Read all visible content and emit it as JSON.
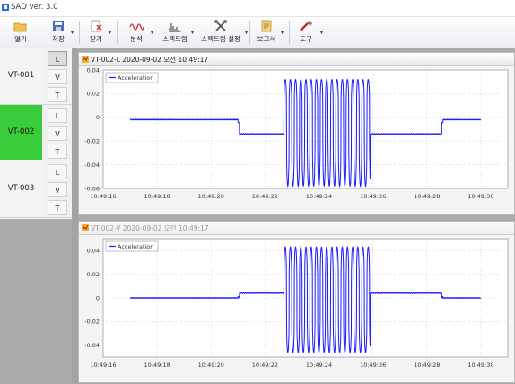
{
  "app": {
    "title": "SAD ver. 3.0"
  },
  "toolbar": {
    "items": [
      {
        "label": "열기",
        "icon": "open-folder-icon",
        "dropdown": false
      },
      {
        "label": "저장",
        "icon": "save-icon",
        "dropdown": true
      },
      {
        "label": "닫기",
        "icon": "close-file-icon",
        "dropdown": true
      },
      {
        "label": "분석",
        "icon": "analysis-wave-icon",
        "dropdown": true
      },
      {
        "label": "스펙트럼",
        "icon": "spectrum-icon",
        "dropdown": true
      },
      {
        "label": "스펙트럼 설정",
        "icon": "spectrum-settings-icon",
        "dropdown": true
      },
      {
        "label": "보고서",
        "icon": "report-icon",
        "dropdown": true
      },
      {
        "label": "도구",
        "icon": "tools-icon",
        "dropdown": true
      }
    ]
  },
  "sidebar": {
    "groups": [
      {
        "name": "VT-001",
        "active": false,
        "axes": [
          "L",
          "V",
          "T"
        ],
        "selected_axis": "L"
      },
      {
        "name": "VT-002",
        "active": true,
        "axes": [
          "L",
          "V",
          "T"
        ],
        "selected_axis": ""
      },
      {
        "name": "VT-003",
        "active": false,
        "axes": [
          "L",
          "V",
          "T"
        ],
        "selected_axis": ""
      }
    ]
  },
  "colors": {
    "active_group": "#3acd3a",
    "series": "#1a1aff",
    "window_bg": "#f4f4f4"
  },
  "windows": [
    {
      "title": "VT-002-L 2020-09-02 오전 10:49:17",
      "active": true
    },
    {
      "title": "VT-002-V 2020-09-02 오전 10:49:17",
      "active": false
    }
  ],
  "chart_data": [
    {
      "type": "line",
      "series": [
        {
          "name": "Acceleration"
        }
      ],
      "legend": "top-left",
      "grid": true,
      "ylim": [
        -0.06,
        0.04
      ],
      "yticks": [
        "0.04",
        "0.02",
        "0",
        "-0.02",
        "-0.04",
        "-0.06"
      ],
      "xlim": [
        "10:49:16",
        "10:49:31"
      ],
      "xticks": [
        "10:49:16",
        "10:49:18",
        "10:49:20",
        "10:49:22",
        "10:49:24",
        "10:49:26",
        "10:49:28",
        "10:49:30"
      ],
      "signal": {
        "start": "10:49:17",
        "end": "10:49:30",
        "baseline": -0.002,
        "step_down_from": "10:49:21",
        "step_down_to": "10:49:28.6",
        "step_level": -0.014,
        "burst_start": "10:49:22.7",
        "burst_end": "10:49:25.9",
        "burst_max": 0.032,
        "burst_min": -0.058
      }
    },
    {
      "type": "line",
      "series": [
        {
          "name": "Acceleration"
        }
      ],
      "legend": "top-left",
      "grid": true,
      "ylim": [
        -0.05,
        0.05
      ],
      "yticks": [
        "0.04",
        "0.02",
        "0",
        "-0.02",
        "-0.04"
      ],
      "xlim": [
        "10:49:16",
        "10:49:31"
      ],
      "xticks": [
        "10:49:16",
        "10:49:18",
        "10:49:20",
        "10:49:22",
        "10:49:24",
        "10:49:26",
        "10:49:28",
        "10:49:30"
      ],
      "signal": {
        "start": "10:49:17",
        "end": "10:49:30",
        "baseline": 0.0,
        "step_up_from": "10:49:21",
        "step_up_to": "10:49:28.6",
        "step_level": 0.004,
        "burst_start": "10:49:22.7",
        "burst_end": "10:49:25.9",
        "burst_max": 0.043,
        "burst_min": -0.046
      }
    }
  ]
}
